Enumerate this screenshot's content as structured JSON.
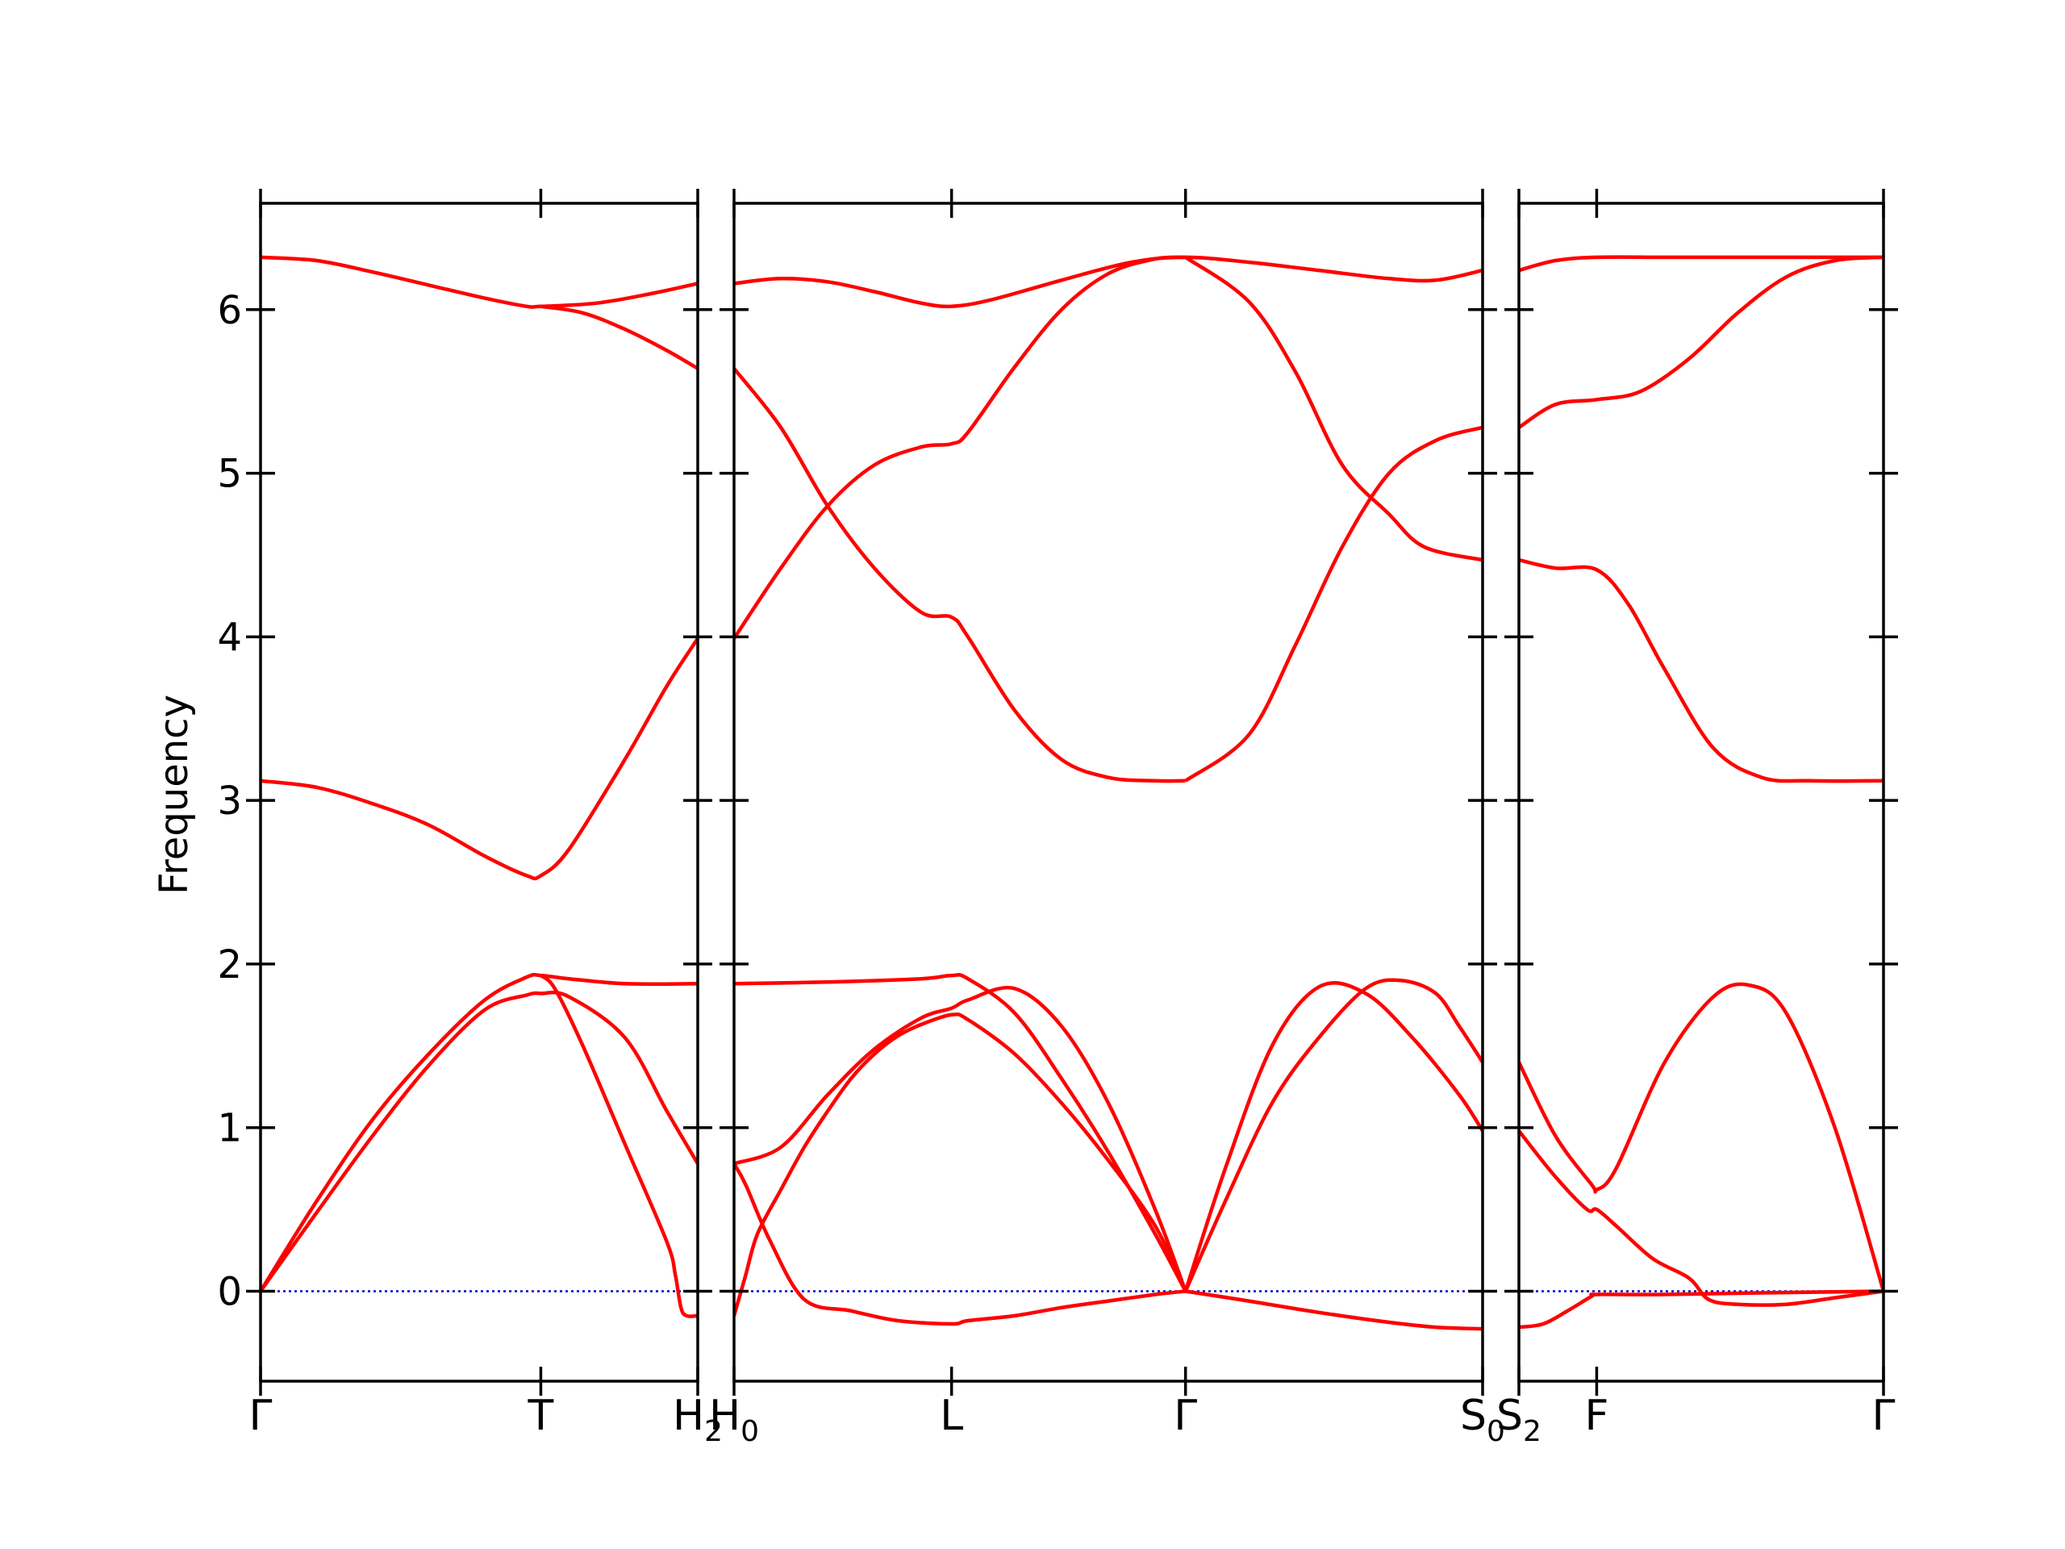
{
  "chart_data": {
    "type": "line",
    "title": "",
    "ylabel": "Frequency",
    "xlabel": "",
    "ylim": [
      -0.55,
      6.65
    ],
    "yticks": [
      0,
      1,
      2,
      3,
      4,
      5,
      6
    ],
    "ytick_labels": [
      "0",
      "1",
      "2",
      "3",
      "4",
      "5",
      "6"
    ],
    "line_color": "#ff0000",
    "zero_line_color": "#0000cc",
    "grid": false,
    "panels": [
      {
        "name": "Γ–T–H2",
        "x_range": [
          0,
          1.56
        ],
        "xticks": [
          {
            "x": 0,
            "label": "Γ",
            "sub": ""
          },
          {
            "x": 1.0,
            "label": "T",
            "sub": ""
          },
          {
            "x": 1.56,
            "label": "H",
            "sub": "2"
          }
        ],
        "bands": [
          {
            "x": [
              0,
              0.2,
              0.4,
              0.6,
              0.8,
              0.95,
              1.0,
              1.2,
              1.4,
              1.56
            ],
            "y": [
              6.32,
              6.3,
              6.23,
              6.15,
              6.07,
              6.02,
              6.02,
              6.04,
              6.1,
              6.16
            ]
          },
          {
            "x": [
              1.0,
              1.15,
              1.3,
              1.45,
              1.56
            ],
            "y": [
              6.02,
              5.98,
              5.88,
              5.75,
              5.64
            ]
          },
          {
            "x": [
              0,
              0.2,
              0.4,
              0.6,
              0.8,
              0.95,
              1.0,
              1.1,
              1.3,
              1.45,
              1.56
            ],
            "y": [
              3.12,
              3.08,
              2.98,
              2.85,
              2.66,
              2.54,
              2.54,
              2.7,
              3.25,
              3.7,
              3.99
            ]
          },
          {
            "x": [
              0,
              0.2,
              0.4,
              0.6,
              0.8,
              0.95,
              1.0,
              1.1,
              1.3,
              1.56
            ],
            "y": [
              0,
              0.55,
              1.05,
              1.45,
              1.78,
              1.92,
              1.93,
              1.91,
              1.88,
              1.88
            ]
          },
          {
            "x": [
              0,
              0.2,
              0.4,
              0.6,
              0.8,
              0.95,
              1.0,
              1.1,
              1.3,
              1.45,
              1.56
            ],
            "y": [
              0,
              0.48,
              0.95,
              1.38,
              1.72,
              1.81,
              1.82,
              1.8,
              1.55,
              1.1,
              0.78
            ]
          },
          {
            "x": [
              1.0,
              1.05,
              1.15,
              1.3,
              1.45,
              1.48,
              1.5,
              1.52,
              1.56
            ],
            "y": [
              1.93,
              1.85,
              1.5,
              0.9,
              0.3,
              0.1,
              -0.1,
              -0.15,
              -0.15
            ]
          }
        ]
      },
      {
        "name": "H0–L–Γ–S0",
        "x_range": [
          0,
          3.2
        ],
        "xticks": [
          {
            "x": 0,
            "label": "H",
            "sub": "0"
          },
          {
            "x": 0.93,
            "label": "L",
            "sub": ""
          },
          {
            "x": 1.93,
            "label": "Γ",
            "sub": ""
          },
          {
            "x": 3.2,
            "label": "S",
            "sub": "0"
          }
        ],
        "bands": [
          {
            "x": [
              0,
              0.2,
              0.4,
              0.6,
              0.8,
              0.93,
              1.1,
              1.4,
              1.7,
              1.93,
              2.2,
              2.5,
              2.8,
              3.0,
              3.2
            ],
            "y": [
              6.16,
              6.19,
              6.17,
              6.11,
              6.04,
              6.02,
              6.06,
              6.18,
              6.29,
              6.32,
              6.29,
              6.24,
              6.19,
              6.18,
              6.24
            ]
          },
          {
            "x": [
              0,
              0.2,
              0.4,
              0.6,
              0.8,
              0.93,
              1.0,
              1.2,
              1.4,
              1.6,
              1.8,
              1.93
            ],
            "y": [
              5.64,
              5.28,
              4.8,
              4.42,
              4.15,
              4.12,
              4.0,
              3.55,
              3.25,
              3.14,
              3.12,
              3.12
            ]
          },
          {
            "x": [
              0,
              0.2,
              0.4,
              0.6,
              0.8,
              0.93,
              1.0,
              1.2,
              1.4,
              1.6,
              1.8,
              1.93
            ],
            "y": [
              3.99,
              4.42,
              4.8,
              5.05,
              5.16,
              5.18,
              5.25,
              5.65,
              6.0,
              6.22,
              6.31,
              6.32
            ]
          },
          {
            "x": [
              1.93,
              2.2,
              2.4,
              2.6,
              2.8,
              2.95,
              3.2
            ],
            "y": [
              6.32,
              6.05,
              5.62,
              5.05,
              4.75,
              4.55,
              4.47
            ]
          },
          {
            "x": [
              1.93,
              2.2,
              2.4,
              2.6,
              2.8,
              3.0,
              3.2
            ],
            "y": [
              3.12,
              3.4,
              3.95,
              4.55,
              5.0,
              5.2,
              5.28
            ]
          },
          {
            "x": [
              0,
              0.4,
              0.8,
              0.93,
              1.0,
              1.2,
              1.4,
              1.6,
              1.8,
              1.93
            ],
            "y": [
              1.88,
              1.89,
              1.91,
              1.93,
              1.91,
              1.7,
              1.3,
              0.85,
              0.35,
              0
            ]
          },
          {
            "x": [
              0,
              0.2,
              0.4,
              0.6,
              0.8,
              0.93,
              1.0,
              1.2,
              1.4,
              1.6,
              1.8,
              1.93
            ],
            "y": [
              0.78,
              0.88,
              1.2,
              1.48,
              1.67,
              1.73,
              1.78,
              1.85,
              1.62,
              1.15,
              0.5,
              0
            ]
          },
          {
            "x": [
              0,
              0.05,
              0.15,
              0.3,
              0.5,
              0.7,
              0.93,
              1.0,
              1.2,
              1.4,
              1.6,
              1.8,
              1.93
            ],
            "y": [
              0.78,
              0.65,
              0.32,
              -0.05,
              -0.12,
              -0.18,
              -0.2,
              -0.18,
              -0.15,
              -0.1,
              -0.06,
              -0.02,
              0
            ]
          },
          {
            "x": [
              0,
              0.02,
              0.05,
              0.1,
              0.2,
              0.3,
              0.4,
              0.5,
              0.6,
              0.7,
              0.8,
              0.93,
              1.0,
              1.2,
              1.4,
              1.6,
              1.8,
              1.93
            ],
            "y": [
              -0.15,
              -0.05,
              0.1,
              0.35,
              0.62,
              0.88,
              1.1,
              1.3,
              1.45,
              1.56,
              1.63,
              1.69,
              1.66,
              1.45,
              1.15,
              0.8,
              0.4,
              0
            ]
          },
          {
            "x": [
              1.93,
              2.1,
              2.3,
              2.5,
              2.7,
              2.9,
              3.1,
              3.2
            ],
            "y": [
              0,
              0.75,
              1.5,
              1.86,
              1.82,
              1.55,
              1.2,
              0.98
            ]
          },
          {
            "x": [
              1.93,
              2.1,
              2.3,
              2.5,
              2.7,
              2.85,
              3.0,
              3.1,
              3.2
            ],
            "y": [
              0,
              0.55,
              1.15,
              1.55,
              1.85,
              1.9,
              1.82,
              1.62,
              1.4
            ]
          },
          {
            "x": [
              1.93,
              2.2,
              2.5,
              2.8,
              3.0,
              3.2
            ],
            "y": [
              0,
              -0.06,
              -0.13,
              -0.19,
              -0.22,
              -0.23
            ]
          }
        ]
      },
      {
        "name": "S2–F–Γ",
        "x_range": [
          0,
          1.5
        ],
        "xticks": [
          {
            "x": 0,
            "label": "S",
            "sub": "2"
          },
          {
            "x": 0.32,
            "label": "F",
            "sub": ""
          },
          {
            "x": 1.5,
            "label": "Γ",
            "sub": ""
          }
        ],
        "bands": [
          {
            "x": [
              0,
              0.15,
              0.32,
              0.6,
              1.0,
              1.3,
              1.5
            ],
            "y": [
              6.24,
              6.3,
              6.32,
              6.32,
              6.32,
              6.32,
              6.32
            ]
          },
          {
            "x": [
              0,
              0.15,
              0.32,
              0.5,
              0.7,
              0.9,
              1.1,
              1.3,
              1.5
            ],
            "y": [
              5.28,
              5.42,
              5.45,
              5.5,
              5.7,
              5.98,
              6.2,
              6.3,
              6.32
            ]
          },
          {
            "x": [
              0,
              0.15,
              0.32,
              0.45,
              0.6,
              0.8,
              1.0,
              1.2,
              1.5
            ],
            "y": [
              4.47,
              4.42,
              4.41,
              4.2,
              3.8,
              3.32,
              3.14,
              3.12,
              3.12
            ]
          },
          {
            "x": [
              0,
              0.15,
              0.3,
              0.32,
              0.4,
              0.6,
              0.8,
              0.95,
              1.1,
              1.3,
              1.5
            ],
            "y": [
              1.4,
              0.95,
              0.65,
              0.62,
              0.75,
              1.4,
              1.8,
              1.87,
              1.7,
              1.0,
              0
            ]
          },
          {
            "x": [
              0,
              0.15,
              0.28,
              0.32,
              0.4,
              0.55,
              0.7,
              0.78,
              0.9,
              1.1,
              1.3,
              1.5
            ],
            "y": [
              0.98,
              0.7,
              0.5,
              0.5,
              0.4,
              0.2,
              0.08,
              -0.05,
              -0.08,
              -0.08,
              -0.04,
              0
            ]
          },
          {
            "x": [
              0,
              0.1,
              0.2,
              0.3,
              0.32,
              0.6,
              1.0,
              1.5
            ],
            "y": [
              -0.22,
              -0.2,
              -0.12,
              -0.03,
              -0.02,
              -0.02,
              -0.01,
              0
            ]
          }
        ]
      }
    ]
  }
}
